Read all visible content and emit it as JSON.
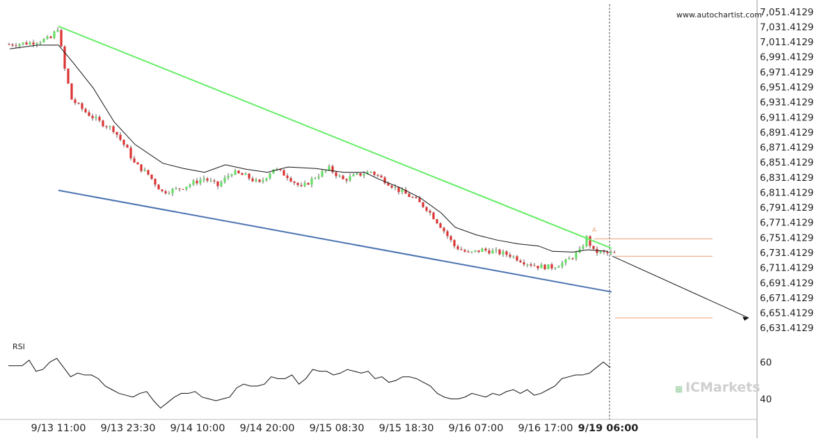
{
  "watermark": "www.autochartist.com",
  "brand": {
    "prefix": "IC",
    "suffix": "Markets"
  },
  "colors": {
    "up": "#66dd66",
    "down": "#dd3333",
    "upper_trend": "#66ee66",
    "lower_trend": "#4a72b0",
    "level": "#f0a070",
    "ma": "#111111",
    "rsi": "#111111",
    "axis_text": "#222222",
    "grid_bg": "#ffffff"
  },
  "chart_data": [
    {
      "type": "candlestick",
      "title": "",
      "ylim": [
        6621.4129,
        7061.4129
      ],
      "y_ticks": [
        "7,051.4129",
        "7,031.4129",
        "7,011.4129",
        "6,991.4129",
        "6,971.4129",
        "6,951.4129",
        "6,931.4129",
        "6,911.4129",
        "6,891.4129",
        "6,871.4129",
        "6,851.4129",
        "6,831.4129",
        "6,811.4129",
        "6,791.4129",
        "6,771.4129",
        "6,751.4129",
        "6,731.4129",
        "6,711.4129",
        "6,691.4129",
        "6,671.4129",
        "6,651.4129",
        "6,631.4129"
      ],
      "x_labels": [
        "9/13 11:00",
        "9/13 23:30",
        "9/14 10:00",
        "9/14 20:00",
        "9/15 08:30",
        "9/15 18:30",
        "9/16 07:00",
        "9/16 17:00",
        "9/19 06:00"
      ],
      "x_label_index": [
        7,
        17,
        27,
        37,
        47,
        57,
        67,
        77,
        86
      ],
      "bar_count": 88,
      "close_path": [
        [
          0,
          7008
        ],
        [
          3,
          7010
        ],
        [
          6,
          7016
        ],
        [
          7,
          7030
        ],
        [
          8,
          6975
        ],
        [
          9,
          6935
        ],
        [
          11,
          6918
        ],
        [
          13,
          6905
        ],
        [
          15,
          6895
        ],
        [
          17,
          6868
        ],
        [
          18,
          6850
        ],
        [
          20,
          6835
        ],
        [
          22,
          6812
        ],
        [
          24,
          6815
        ],
        [
          26,
          6822
        ],
        [
          28,
          6830
        ],
        [
          30,
          6820
        ],
        [
          32,
          6838
        ],
        [
          34,
          6833
        ],
        [
          36,
          6823
        ],
        [
          38,
          6843
        ],
        [
          40,
          6833
        ],
        [
          42,
          6817
        ],
        [
          44,
          6832
        ],
        [
          46,
          6843
        ],
        [
          48,
          6828
        ],
        [
          50,
          6834
        ],
        [
          52,
          6839
        ],
        [
          54,
          6827
        ],
        [
          56,
          6814
        ],
        [
          58,
          6804
        ],
        [
          60,
          6790
        ],
        [
          62,
          6767
        ],
        [
          64,
          6740
        ],
        [
          66,
          6730
        ],
        [
          68,
          6735
        ],
        [
          70,
          6732
        ],
        [
          72,
          6728
        ],
        [
          74,
          6719
        ],
        [
          76,
          6713
        ],
        [
          78,
          6712
        ],
        [
          80,
          6719
        ],
        [
          82,
          6733
        ],
        [
          83,
          6751
        ],
        [
          84,
          6733
        ],
        [
          86,
          6730
        ]
      ],
      "moving_average": [
        [
          0,
          7002
        ],
        [
          4,
          7007
        ],
        [
          7,
          7007
        ],
        [
          9,
          6985
        ],
        [
          12,
          6950
        ],
        [
          15,
          6905
        ],
        [
          18,
          6875
        ],
        [
          22,
          6850
        ],
        [
          25,
          6843
        ],
        [
          28,
          6838
        ],
        [
          31,
          6848
        ],
        [
          34,
          6842
        ],
        [
          37,
          6838
        ],
        [
          40,
          6845
        ],
        [
          44,
          6843
        ],
        [
          48,
          6838
        ],
        [
          51,
          6838
        ],
        [
          53,
          6829
        ],
        [
          56,
          6818
        ],
        [
          59,
          6804
        ],
        [
          62,
          6784
        ],
        [
          64,
          6765
        ],
        [
          67,
          6755
        ],
        [
          70,
          6748
        ],
        [
          73,
          6743
        ],
        [
          76,
          6740
        ],
        [
          78,
          6733
        ],
        [
          81,
          6732
        ],
        [
          83,
          6735
        ],
        [
          86,
          6733
        ]
      ],
      "upper_trendline": [
        [
          7,
          7032
        ],
        [
          86.5,
          6737
        ]
      ],
      "lower_trendline": [
        [
          7,
          6814
        ],
        [
          86.5,
          6679
        ]
      ],
      "levels": [
        {
          "value": 6749.5,
          "from": 84,
          "to": 101
        },
        {
          "value": 6726.5,
          "from": 87,
          "to": 101
        },
        {
          "value": 6644.5,
          "from": 87,
          "to": 101
        }
      ],
      "forecast_arrow": {
        "from": [
          87,
          6726.5
        ],
        "to": [
          107,
          6644.5
        ]
      },
      "pattern_point_label": "A",
      "pattern_point": [
        84,
        6755
      ]
    },
    {
      "type": "line",
      "title": "RSI",
      "ylim": [
        30,
        70
      ],
      "y_ticks": [
        "60",
        "40"
      ],
      "series": [
        {
          "values": [
            58,
            58,
            58,
            61,
            55,
            56,
            60,
            62,
            57,
            52,
            54,
            53,
            53,
            51,
            47,
            45,
            43,
            42,
            41,
            43,
            44,
            39,
            35,
            38,
            41,
            43,
            43,
            44,
            41,
            40,
            39,
            40,
            41,
            46,
            48,
            47,
            47,
            48,
            52,
            51,
            51,
            53,
            48,
            51,
            56,
            55,
            55,
            53,
            54,
            56,
            55,
            54,
            55,
            51,
            52,
            49,
            50,
            52,
            52,
            51,
            49,
            47,
            43,
            41,
            40,
            40,
            41,
            43,
            42,
            41,
            43,
            42,
            44,
            45,
            43,
            45,
            42,
            43,
            45,
            47,
            51,
            52,
            53,
            53,
            54,
            57,
            60,
            57
          ]
        }
      ]
    }
  ]
}
